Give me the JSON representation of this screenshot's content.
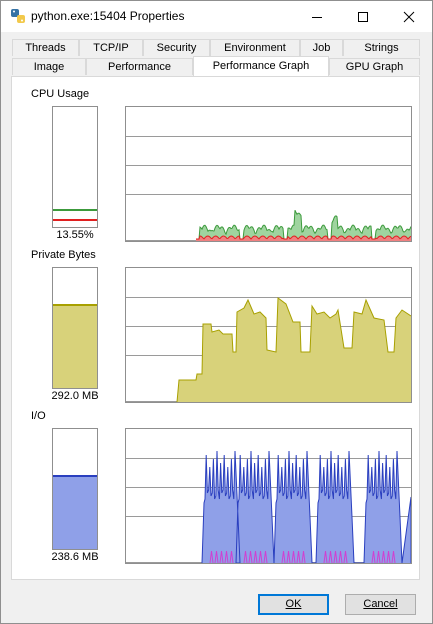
{
  "window": {
    "title": "python.exe:15404 Properties",
    "controls": {
      "minimize": "minimize-icon",
      "maximize": "maximize-icon",
      "close": "close-icon"
    }
  },
  "tabs": {
    "row1": [
      "Threads",
      "TCP/IP",
      "Security",
      "Environment",
      "Job",
      "Strings"
    ],
    "row2": [
      "Image",
      "Performance",
      "Performance Graph",
      "GPU Graph"
    ],
    "active": "Performance Graph"
  },
  "sections": {
    "cpu": {
      "label": "CPU Usage",
      "value": "13.55%",
      "fraction": 0.135
    },
    "private_bytes": {
      "label": "Private Bytes",
      "value": "292.0 MB",
      "fraction": 0.68
    },
    "io": {
      "label": "I/O",
      "value": "238.6  MB",
      "fraction": 0.6
    }
  },
  "colors": {
    "cpu_kernel": "#e02020",
    "cpu_total": "#3c9a3c",
    "cpu_fill": "#9fd49f",
    "private_bytes_line": "#a8a000",
    "private_bytes_fill": "#d8d27a",
    "io_line": "#2a3fbf",
    "io_fill": "#8fa0e8",
    "io_other": "#d040d0",
    "accent": "#0078d7"
  },
  "buttons": {
    "ok": "OK",
    "cancel": "Cancel"
  }
}
